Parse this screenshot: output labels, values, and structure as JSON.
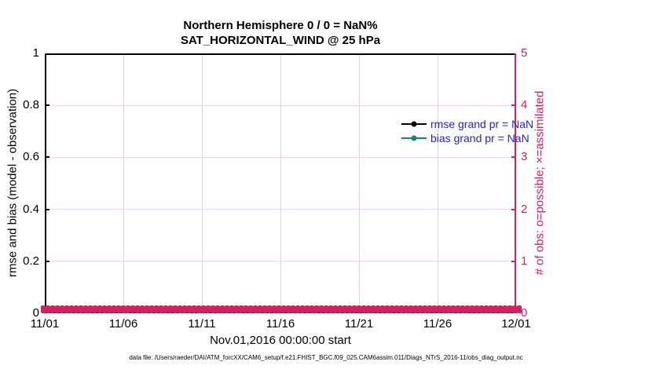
{
  "figure": {
    "title_line1": "Northern Hemisphere 0 / 0 = NaN%",
    "title_line2": "SAT_HORIZONTAL_WIND @ 25 hPa",
    "xlabel": "Nov.01,2016 00:00:00 start",
    "ylabel_left": "rmse and bias (model - observation)",
    "ylabel_right": "# of obs: o=possible; ×=assimilated",
    "caption": "data file: /Users/raeder/DAI/ATM_forcXX/CAM6_setup/f.e21.FHIST_BGC.f09_025.CAM6assim.011/Diags_NTrS_2016-11/obs_diag_output.nc"
  },
  "axes": {
    "x_tick_labels": [
      "11/01",
      "11/06",
      "11/11",
      "11/16",
      "11/21",
      "11/26",
      "12/01"
    ],
    "y_left_tick_labels": [
      "1",
      "0.8",
      "0.6",
      "0.4",
      "0.2",
      "0"
    ],
    "y_right_tick_labels": [
      "5",
      "4",
      "3",
      "2",
      "1",
      "0"
    ]
  },
  "legend": {
    "text_color": "#2121E8",
    "items": [
      {
        "label": "rmse grand pr = NaN",
        "color": "#000000",
        "marker": "filled-circle"
      },
      {
        "label": "bias grand pr = NaN",
        "color": "#11857B",
        "marker": "filled-circle"
      }
    ]
  },
  "colors": {
    "accent_pink": "#D2215F",
    "grid_horizontal": "#F7D3DF",
    "grid_vertical": "#DBD5DB",
    "axis_black": "#000000",
    "legend_text_blue": "#2121E8",
    "bias_teal": "#11857B"
  },
  "chart_data": {
    "type": "line",
    "title": "Northern Hemisphere 0 / 0 = NaN%",
    "subtitle": "SAT_HORIZONTAL_WIND @ 25 hPa",
    "xlabel": "Nov.01,2016 00:00:00 start",
    "ylabel": "rmse and bias (model - observation)",
    "ylabel_right": "# of obs: o=possible; ×=assimilated",
    "x_tick_labels": [
      "11/01",
      "11/06",
      "11/11",
      "11/16",
      "11/21",
      "11/26",
      "12/01"
    ],
    "xlim": [
      "11/01",
      "12/01"
    ],
    "ylim_left": [
      0,
      1
    ],
    "ylim_right": [
      0,
      5
    ],
    "y_left_ticks": [
      0,
      0.2,
      0.4,
      0.6,
      0.8,
      1
    ],
    "y_right_ticks": [
      0,
      1,
      2,
      3,
      4,
      5
    ],
    "grid": true,
    "legend_position": "upper-right-inside-no-box",
    "series": [
      {
        "name": "rmse grand pr",
        "legend": "rmse grand pr = NaN",
        "axis": "left",
        "color": "#000000",
        "marker": "filled-circle",
        "values": "NaN (nothing plotted)"
      },
      {
        "name": "bias grand pr",
        "legend": "bias grand pr = NaN",
        "axis": "left",
        "color": "#11857B",
        "marker": "filled-circle",
        "values": "NaN (nothing plotted)"
      },
      {
        "name": "# of obs possible",
        "axis": "right",
        "color": "#D2215F",
        "marker": "o",
        "value_constant": 0,
        "span": "every bin 11/01-12/01"
      },
      {
        "name": "# of obs assimilated",
        "axis": "right",
        "color": "#D2215F",
        "marker": "x",
        "value_constant": 0,
        "span": "every bin 11/01-12/01"
      }
    ]
  }
}
